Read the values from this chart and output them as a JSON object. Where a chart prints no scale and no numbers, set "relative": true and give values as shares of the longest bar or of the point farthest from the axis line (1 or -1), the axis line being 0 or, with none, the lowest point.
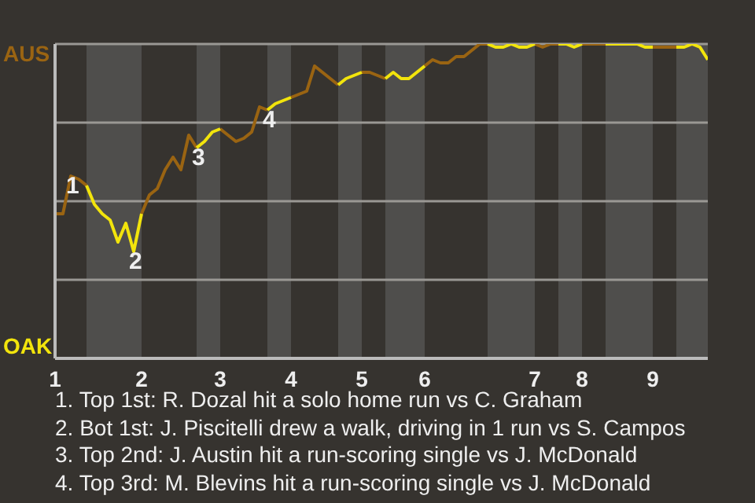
{
  "chart_data": {
    "type": "line",
    "relative": true,
    "categories": [
      "1",
      null,
      null,
      null,
      null,
      null,
      null,
      null,
      null,
      null,
      null,
      "2",
      null,
      null,
      null,
      null,
      null,
      null,
      null,
      null,
      null,
      "3",
      null,
      null,
      null,
      null,
      null,
      null,
      null,
      null,
      "4",
      null,
      null,
      null,
      null,
      null,
      null,
      null,
      null,
      "5",
      null,
      null,
      null,
      null,
      null,
      null,
      null,
      "6",
      null,
      null,
      null,
      null,
      null,
      null,
      null,
      null,
      null,
      null,
      null,
      null,
      null,
      "7",
      null,
      null,
      null,
      null,
      null,
      "8",
      null,
      null,
      null,
      null,
      null,
      null,
      null,
      null,
      "9",
      null,
      null,
      null,
      null,
      null,
      null,
      null
    ],
    "grid": "y",
    "marker": "none",
    "line_style": "solid",
    "series": [
      {
        "color": "#9a6412",
        "values": [
          0.46,
          0.46,
          0.58,
          0.57,
          0.55,
          null,
          null,
          null,
          null,
          null,
          null,
          0.46,
          0.52,
          0.54,
          0.6,
          0.64,
          0.6,
          0.71,
          0.67,
          null,
          null,
          0.73,
          0.71,
          0.69,
          0.7,
          0.72,
          0.8,
          0.79,
          null,
          null,
          0.83,
          0.84,
          0.85,
          0.93,
          0.91,
          0.89,
          0.87,
          null,
          null,
          0.91,
          0.91,
          0.9,
          0.89,
          null,
          null,
          null,
          null,
          0.93,
          0.95,
          0.94,
          0.94,
          0.96,
          0.96,
          0.98,
          1,
          1,
          null,
          null,
          null,
          null,
          null,
          1,
          0.99,
          1,
          1,
          null,
          null,
          1,
          1,
          1,
          1,
          null,
          null,
          null,
          null,
          null,
          0.99,
          0.99,
          0.99,
          0.99,
          null,
          null,
          null,
          null
        ]
      },
      {
        "color": "#f2e40c",
        "values": [
          null,
          null,
          null,
          null,
          0.55,
          0.49,
          0.46,
          0.44,
          0.37,
          0.43,
          0.34,
          0.46,
          null,
          null,
          null,
          null,
          null,
          null,
          0.67,
          0.69,
          0.72,
          0.73,
          null,
          null,
          null,
          null,
          null,
          0.79,
          0.81,
          0.82,
          0.83,
          null,
          null,
          null,
          null,
          null,
          0.87,
          0.89,
          0.9,
          0.91,
          null,
          null,
          0.89,
          0.91,
          0.89,
          0.89,
          0.91,
          0.93,
          null,
          null,
          null,
          null,
          null,
          null,
          null,
          1,
          0.99,
          0.99,
          1,
          0.99,
          0.99,
          1,
          null,
          null,
          1,
          1,
          0.99,
          1,
          null,
          null,
          1,
          1,
          1,
          1,
          1,
          0.99,
          0.99,
          null,
          null,
          0.99,
          0.99,
          1,
          0.99,
          0.95
        ]
      }
    ],
    "annotations": [
      "AUS",
      "OAK",
      {
        "text": "1",
        "y": 0.58
      },
      {
        "text": "2",
        "y": 0.34
      },
      {
        "text": "3",
        "y": 0.67
      },
      {
        "text": "4",
        "y": 0.79
      },
      "1. Top 1st: R. Dozal hit a solo home run vs C. Graham",
      "2. Bot 1st: J. Piscitelli drew a walk, driving in 1 run vs S. Campos",
      "3. Top 2nd: J. Austin hit a run-scoring single vs J. McDonald",
      "4. Top 3rd: M. Blevins hit a run-scoring single vs J. McDonald"
    ]
  }
}
